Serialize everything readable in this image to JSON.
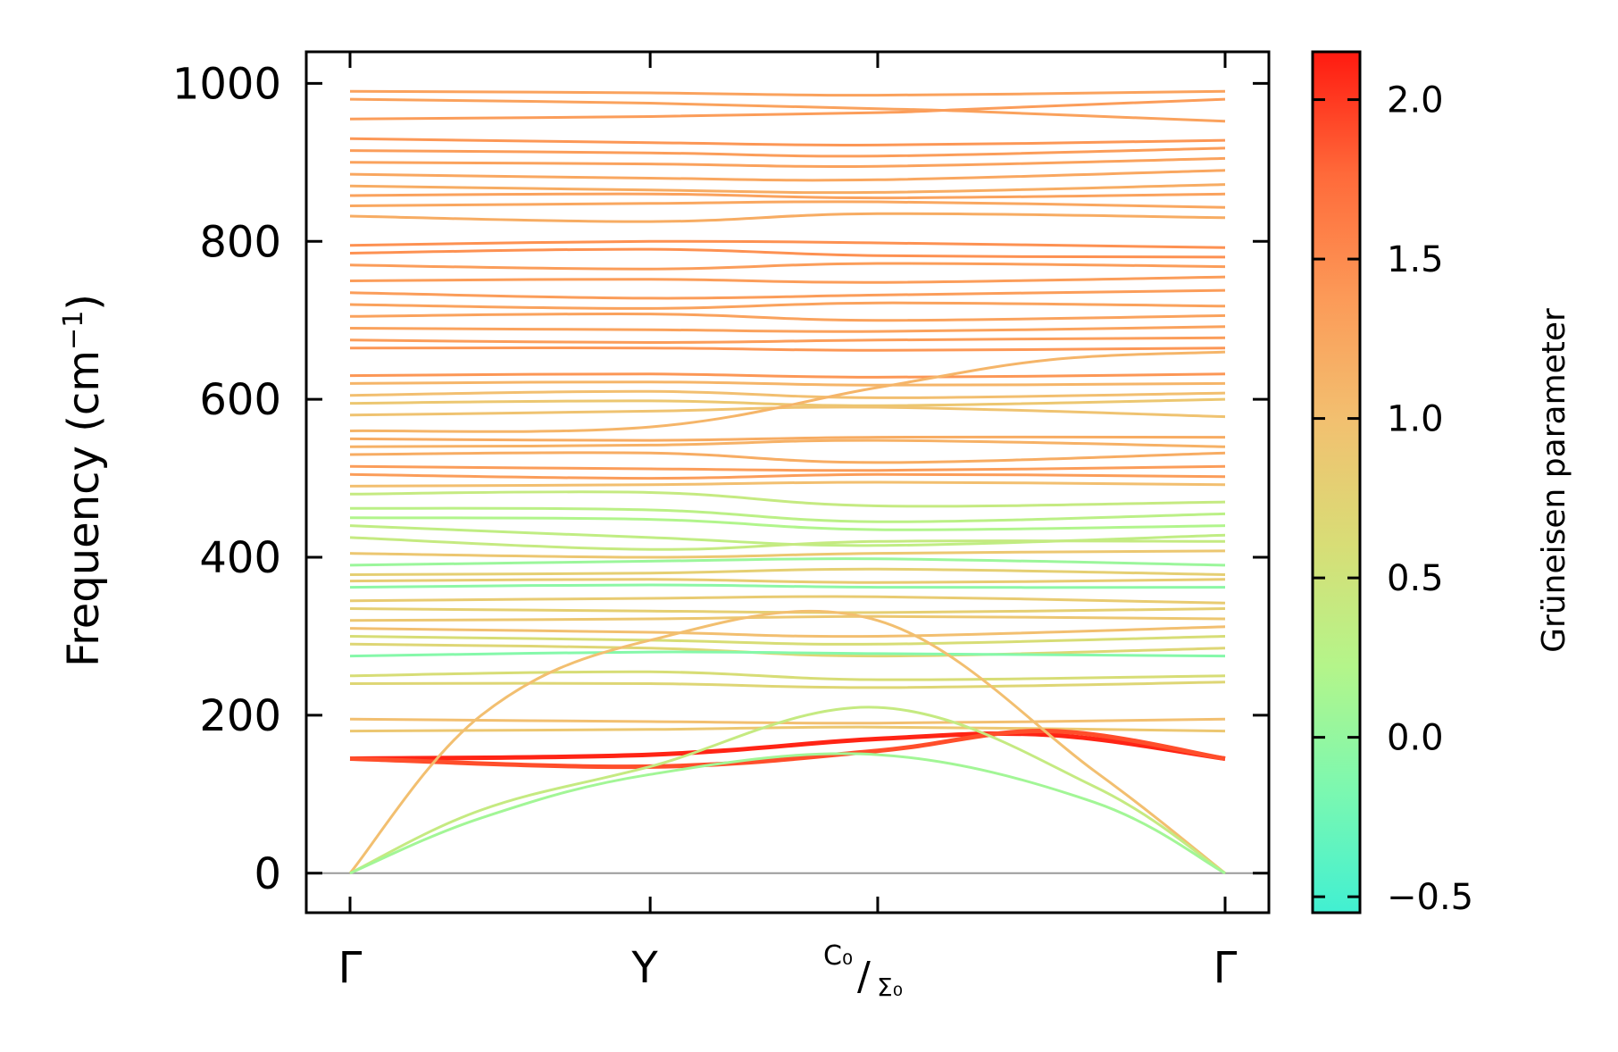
{
  "chart_data": {
    "type": "line",
    "title": "",
    "ylabel": "Frequency (cm",
    "ylabel_sup": "−1",
    "ylabel_close": ")",
    "ylim": [
      -50,
      1040
    ],
    "yticks": [
      0,
      200,
      400,
      600,
      800,
      1000
    ],
    "ytick_labels": [
      "0",
      "200",
      "400",
      "600",
      "800",
      "1000"
    ],
    "x_path": [
      {
        "label": "Γ",
        "pos": 0.0
      },
      {
        "label": "Y",
        "pos": 0.343
      },
      {
        "label_main": "C₀",
        "label_sub": "Σ₀",
        "pos": 0.603
      },
      {
        "label": "Γ",
        "pos": 1.0
      }
    ],
    "zero_line": 0,
    "colorbar": {
      "label": "Grüneisen parameter",
      "range": [
        -0.55,
        2.15
      ],
      "ticks": [
        -0.5,
        0.0,
        0.5,
        1.0,
        1.5,
        2.0
      ],
      "tick_labels": [
        "−0.5",
        "0.0",
        "0.5",
        "1.0",
        "1.5",
        "2.0"
      ],
      "colormap": [
        "#41f0d2",
        "#7cf8b0",
        "#b4f58a",
        "#d8dd76",
        "#f2c070",
        "#fc9a58",
        "#ff6a3a",
        "#ff1a10"
      ]
    },
    "series": [
      {
        "name": "flat-990",
        "x": [
          0,
          0.343,
          0.603,
          1
        ],
        "y": [
          990,
          988,
          985,
          990
        ],
        "gamma": 1.3
      },
      {
        "name": "cross-980",
        "x": [
          0,
          0.343,
          0.603,
          0.7,
          1
        ],
        "y": [
          980,
          975,
          968,
          965,
          952
        ],
        "gamma": 1.3
      },
      {
        "name": "cross-955",
        "x": [
          0,
          0.343,
          0.603,
          0.7,
          1
        ],
        "y": [
          955,
          958,
          963,
          967,
          980
        ],
        "gamma": 1.35
      },
      {
        "name": "band-930",
        "x": [
          0,
          0.343,
          0.603,
          1
        ],
        "y": [
          930,
          925,
          922,
          928
        ],
        "gamma": 1.4
      },
      {
        "name": "band-915",
        "x": [
          0,
          0.343,
          0.603,
          1
        ],
        "y": [
          915,
          912,
          908,
          918
        ],
        "gamma": 1.35
      },
      {
        "name": "band-900",
        "x": [
          0,
          0.343,
          0.603,
          1
        ],
        "y": [
          900,
          898,
          895,
          905
        ],
        "gamma": 1.3
      },
      {
        "name": "band-885",
        "x": [
          0,
          0.343,
          0.603,
          1
        ],
        "y": [
          885,
          880,
          878,
          890
        ],
        "gamma": 1.25
      },
      {
        "name": "band-870",
        "x": [
          0,
          0.343,
          0.603,
          1
        ],
        "y": [
          870,
          865,
          862,
          872
        ],
        "gamma": 1.2
      },
      {
        "name": "band-858",
        "x": [
          0,
          0.343,
          0.603,
          1
        ],
        "y": [
          858,
          860,
          855,
          860
        ],
        "gamma": 1.3
      },
      {
        "name": "band-845",
        "x": [
          0,
          0.343,
          0.603,
          1
        ],
        "y": [
          845,
          848,
          850,
          843
        ],
        "gamma": 1.25
      },
      {
        "name": "band-832",
        "x": [
          0,
          0.343,
          0.603,
          1
        ],
        "y": [
          832,
          825,
          835,
          830
        ],
        "gamma": 1.2
      },
      {
        "name": "band-795",
        "x": [
          0,
          0.343,
          0.603,
          1
        ],
        "y": [
          795,
          800,
          798,
          792
        ],
        "gamma": 1.45
      },
      {
        "name": "band-785",
        "x": [
          0,
          0.343,
          0.603,
          1
        ],
        "y": [
          785,
          790,
          782,
          780
        ],
        "gamma": 1.45
      },
      {
        "name": "band-770",
        "x": [
          0,
          0.343,
          0.603,
          1
        ],
        "y": [
          770,
          765,
          772,
          768
        ],
        "gamma": 1.35
      },
      {
        "name": "band-750",
        "x": [
          0,
          0.343,
          0.603,
          1
        ],
        "y": [
          750,
          752,
          748,
          755
        ],
        "gamma": 1.35
      },
      {
        "name": "band-735",
        "x": [
          0,
          0.343,
          0.603,
          1
        ],
        "y": [
          735,
          728,
          732,
          738
        ],
        "gamma": 1.35
      },
      {
        "name": "band-720",
        "x": [
          0,
          0.343,
          0.603,
          1
        ],
        "y": [
          720,
          715,
          722,
          718
        ],
        "gamma": 1.3
      },
      {
        "name": "band-705",
        "x": [
          0,
          0.343,
          0.603,
          1
        ],
        "y": [
          705,
          708,
          700,
          706
        ],
        "gamma": 1.3
      },
      {
        "name": "band-690",
        "x": [
          0,
          0.343,
          0.603,
          1
        ],
        "y": [
          690,
          688,
          686,
          692
        ],
        "gamma": 1.3
      },
      {
        "name": "band-675",
        "x": [
          0,
          0.343,
          0.603,
          1
        ],
        "y": [
          675,
          672,
          675,
          678
        ],
        "gamma": 1.35
      },
      {
        "name": "band-665",
        "x": [
          0,
          0.343,
          0.603,
          1
        ],
        "y": [
          665,
          665,
          662,
          665
        ],
        "gamma": 1.4
      },
      {
        "name": "band-630",
        "x": [
          0,
          0.343,
          0.603,
          1
        ],
        "y": [
          630,
          632,
          628,
          632
        ],
        "gamma": 1.4
      },
      {
        "name": "band-620",
        "x": [
          0,
          0.343,
          0.603,
          1
        ],
        "y": [
          620,
          622,
          618,
          620
        ],
        "gamma": 1.1
      },
      {
        "name": "band-605",
        "x": [
          0,
          0.343,
          0.603,
          1
        ],
        "y": [
          605,
          610,
          602,
          608
        ],
        "gamma": 1.0
      },
      {
        "name": "band-595",
        "x": [
          0,
          0.343,
          0.603,
          1
        ],
        "y": [
          595,
          598,
          592,
          600
        ],
        "gamma": 0.9
      },
      {
        "name": "band-580",
        "x": [
          0,
          0.343,
          0.603,
          1
        ],
        "y": [
          580,
          585,
          590,
          578
        ],
        "gamma": 0.95
      },
      {
        "name": "rise-560",
        "x": [
          0,
          0.343,
          0.603,
          0.8,
          1
        ],
        "y": [
          560,
          565,
          615,
          650,
          660
        ],
        "gamma": 1.1
      },
      {
        "name": "band-550",
        "x": [
          0,
          0.343,
          0.603,
          1
        ],
        "y": [
          550,
          548,
          552,
          552
        ],
        "gamma": 1.2
      },
      {
        "name": "band-540",
        "x": [
          0,
          0.343,
          0.603,
          1
        ],
        "y": [
          540,
          542,
          548,
          540
        ],
        "gamma": 1.15
      },
      {
        "name": "band-530",
        "x": [
          0,
          0.343,
          0.603,
          1
        ],
        "y": [
          530,
          532,
          520,
          532
        ],
        "gamma": 1.2
      },
      {
        "name": "band-515",
        "x": [
          0,
          0.343,
          0.603,
          1
        ],
        "y": [
          515,
          512,
          510,
          515
        ],
        "gamma": 1.35
      },
      {
        "name": "band-505",
        "x": [
          0,
          0.343,
          0.603,
          1
        ],
        "y": [
          505,
          500,
          505,
          502
        ],
        "gamma": 1.35
      },
      {
        "name": "band-490",
        "x": [
          0,
          0.343,
          0.603,
          1
        ],
        "y": [
          490,
          492,
          495,
          492
        ],
        "gamma": 1.0
      },
      {
        "name": "band-480",
        "x": [
          0,
          0.343,
          0.603,
          1
        ],
        "y": [
          480,
          482,
          465,
          470
        ],
        "gamma": 0.4
      },
      {
        "name": "band-462",
        "x": [
          0,
          0.343,
          0.603,
          1
        ],
        "y": [
          462,
          460,
          445,
          455
        ],
        "gamma": 0.3
      },
      {
        "name": "band-450",
        "x": [
          0,
          0.343,
          0.603,
          1
        ],
        "y": [
          450,
          448,
          435,
          440
        ],
        "gamma": 0.2
      },
      {
        "name": "band-440",
        "x": [
          0,
          0.343,
          0.603,
          1
        ],
        "y": [
          440,
          425,
          415,
          428
        ],
        "gamma": 0.35
      },
      {
        "name": "band-425",
        "x": [
          0,
          0.343,
          0.603,
          1
        ],
        "y": [
          425,
          410,
          420,
          420
        ],
        "gamma": 0.4
      },
      {
        "name": "band-405",
        "x": [
          0,
          0.343,
          0.603,
          1
        ],
        "y": [
          405,
          400,
          405,
          408
        ],
        "gamma": 0.9
      },
      {
        "name": "band-390",
        "x": [
          0,
          0.343,
          0.603,
          1
        ],
        "y": [
          390,
          395,
          398,
          390
        ],
        "gamma": 0.05
      },
      {
        "name": "band-378",
        "x": [
          0,
          0.343,
          0.603,
          1
        ],
        "y": [
          378,
          380,
          385,
          378
        ],
        "gamma": 0.8
      },
      {
        "name": "band-370",
        "x": [
          0,
          0.343,
          0.603,
          1
        ],
        "y": [
          370,
          372,
          368,
          372
        ],
        "gamma": 0.85
      },
      {
        "name": "band-362",
        "x": [
          0,
          0.343,
          0.603,
          1
        ],
        "y": [
          362,
          365,
          362,
          362
        ],
        "gamma": -0.05
      },
      {
        "name": "band-345",
        "x": [
          0,
          0.343,
          0.603,
          1
        ],
        "y": [
          345,
          348,
          350,
          342
        ],
        "gamma": 0.85
      },
      {
        "name": "band-335",
        "x": [
          0,
          0.343,
          0.603,
          1
        ],
        "y": [
          335,
          332,
          330,
          335
        ],
        "gamma": 0.8
      },
      {
        "name": "band-320",
        "x": [
          0,
          0.343,
          0.603,
          1
        ],
        "y": [
          320,
          322,
          325,
          322
        ],
        "gamma": 0.9
      },
      {
        "name": "band-310",
        "x": [
          0,
          0.343,
          0.603,
          1
        ],
        "y": [
          310,
          305,
          300,
          312
        ],
        "gamma": 1.0
      },
      {
        "name": "band-300",
        "x": [
          0,
          0.343,
          0.603,
          1
        ],
        "y": [
          300,
          295,
          290,
          300
        ],
        "gamma": 0.6
      },
      {
        "name": "band-290",
        "x": [
          0,
          0.343,
          0.603,
          1
        ],
        "y": [
          290,
          285,
          275,
          285
        ],
        "gamma": 0.7
      },
      {
        "name": "band-275",
        "x": [
          0,
          0.343,
          0.603,
          1
        ],
        "y": [
          275,
          280,
          278,
          275
        ],
        "gamma": -0.1
      },
      {
        "name": "band-250",
        "x": [
          0,
          0.343,
          0.603,
          1
        ],
        "y": [
          250,
          255,
          245,
          250
        ],
        "gamma": 0.6
      },
      {
        "name": "band-240",
        "x": [
          0,
          0.343,
          0.603,
          1
        ],
        "y": [
          240,
          240,
          235,
          242
        ],
        "gamma": 0.7
      },
      {
        "name": "band-195",
        "x": [
          0,
          0.343,
          0.603,
          1
        ],
        "y": [
          195,
          192,
          190,
          195
        ],
        "gamma": 1.0
      },
      {
        "name": "band-180",
        "x": [
          0,
          0.343,
          0.603,
          1
        ],
        "y": [
          180,
          182,
          185,
          180
        ],
        "gamma": 0.9
      },
      {
        "name": "red-145",
        "x": [
          0,
          0.343,
          0.603,
          0.8,
          1
        ],
        "y": [
          145,
          150,
          170,
          175,
          145
        ],
        "gamma": 2.1
      },
      {
        "name": "red-138",
        "x": [
          0,
          0.343,
          0.603,
          0.8,
          1
        ],
        "y": [
          145,
          135,
          155,
          180,
          145
        ],
        "gamma": 1.9
      },
      {
        "name": "acoustic-1",
        "x": [
          0,
          0.15,
          0.343,
          0.603,
          0.85,
          1
        ],
        "y": [
          0,
          200,
          295,
          320,
          130,
          0
        ],
        "gamma": 1.0
      },
      {
        "name": "acoustic-2",
        "x": [
          0,
          0.15,
          0.343,
          0.603,
          0.85,
          1
        ],
        "y": [
          0,
          80,
          135,
          210,
          110,
          0
        ],
        "gamma": 0.4
      },
      {
        "name": "acoustic-3",
        "x": [
          0,
          0.15,
          0.343,
          0.603,
          0.85,
          1
        ],
        "y": [
          0,
          70,
          125,
          150,
          90,
          0
        ],
        "gamma": 0.1
      }
    ]
  }
}
